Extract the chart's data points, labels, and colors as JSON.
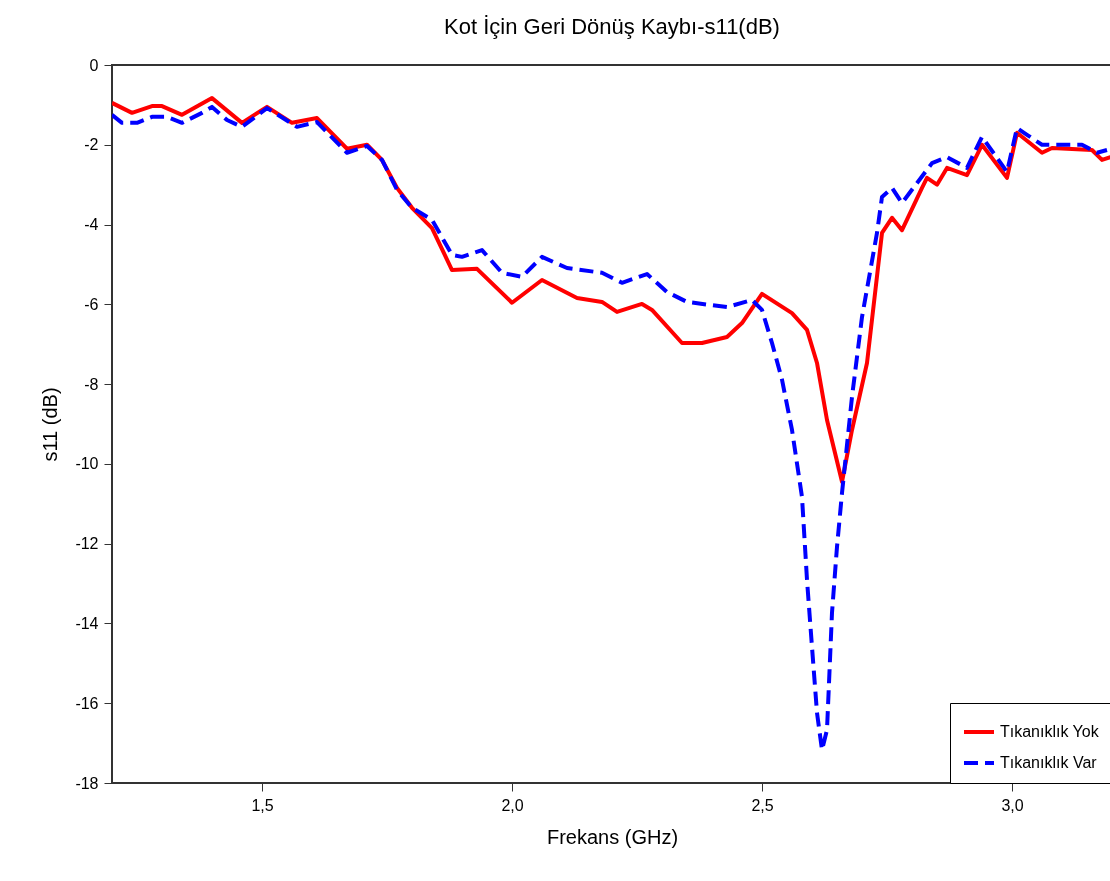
{
  "chart_data": {
    "type": "line",
    "title": "Kot İçin Geri Dönüş Kaybı-s11(dB)",
    "xlabel": "Frekans (GHz)",
    "ylabel": "s11 (dB)",
    "xlim": [
      1.2,
      3.2
    ],
    "xticks": [
      {
        "value": 1.5,
        "label": "1,5"
      },
      {
        "value": 2.0,
        "label": "2,0"
      },
      {
        "value": 2.5,
        "label": "2,5"
      },
      {
        "value": 3.0,
        "label": "3,0"
      }
    ],
    "ylim": [
      -18,
      0
    ],
    "yticks": [
      -18,
      -16,
      -14,
      -12,
      -10,
      -8,
      -6,
      -4,
      -2,
      0
    ],
    "legend": "bottom right",
    "grid": false,
    "series": [
      {
        "name": "Tıkanıklık Yok",
        "color": "#ff0000",
        "line_style": "solid",
        "x": [
          1.2,
          1.24,
          1.28,
          1.3,
          1.34,
          1.4,
          1.46,
          1.51,
          1.56,
          1.61,
          1.67,
          1.71,
          1.74,
          1.77,
          1.8,
          1.84,
          1.88,
          1.93,
          2.0,
          2.06,
          2.13,
          2.18,
          2.21,
          2.26,
          2.28,
          2.34,
          2.38,
          2.43,
          2.46,
          2.5,
          2.56,
          2.59,
          2.61,
          2.63,
          2.66,
          2.68,
          2.71,
          2.74,
          2.76,
          2.78,
          2.82,
          2.83,
          2.85,
          2.87,
          2.91,
          2.94,
          2.99,
          3.01,
          3.06,
          3.08,
          3.16,
          3.18,
          3.2
        ],
        "values": [
          -0.95,
          -1.2,
          -1.03,
          -1.03,
          -1.25,
          -0.83,
          -1.45,
          -1.05,
          -1.45,
          -1.33,
          -2.1,
          -2.0,
          -2.38,
          -3.08,
          -3.58,
          -4.09,
          -5.14,
          -5.11,
          -5.96,
          -5.39,
          -5.84,
          -5.94,
          -6.19,
          -5.99,
          -6.14,
          -6.97,
          -6.97,
          -6.82,
          -6.47,
          -5.74,
          -6.22,
          -6.64,
          -7.47,
          -8.9,
          -10.45,
          -9.15,
          -7.47,
          -4.21,
          -3.83,
          -4.14,
          -3.08,
          -2.83,
          -3.0,
          -2.58,
          -2.76,
          -2.0,
          -2.83,
          -1.7,
          -2.2,
          -2.08,
          -2.13,
          -2.38,
          -2.3
        ]
      },
      {
        "name": "Tıkanıklık Var",
        "color": "#0000ff",
        "line_style": "dashed",
        "x": [
          1.2,
          1.22,
          1.25,
          1.28,
          1.31,
          1.34,
          1.38,
          1.4,
          1.43,
          1.46,
          1.51,
          1.57,
          1.61,
          1.67,
          1.71,
          1.74,
          1.77,
          1.8,
          1.84,
          1.88,
          1.9,
          1.94,
          1.98,
          2.02,
          2.06,
          2.11,
          2.18,
          2.22,
          2.27,
          2.31,
          2.35,
          2.43,
          2.48,
          2.5,
          2.52,
          2.54,
          2.56,
          2.58,
          2.59,
          2.6,
          2.61,
          2.62,
          2.63,
          2.64,
          2.65,
          2.66,
          2.68,
          2.7,
          2.73,
          2.74,
          2.76,
          2.78,
          2.84,
          2.87,
          2.91,
          2.94,
          2.99,
          3.01,
          3.03,
          3.06,
          3.1,
          3.14,
          3.17,
          3.19
        ],
        "values": [
          -1.25,
          -1.45,
          -1.45,
          -1.3,
          -1.3,
          -1.45,
          -1.2,
          -1.05,
          -1.38,
          -1.55,
          -1.08,
          -1.55,
          -1.43,
          -2.2,
          -2.03,
          -2.38,
          -3.13,
          -3.58,
          -3.88,
          -4.76,
          -4.81,
          -4.64,
          -5.21,
          -5.31,
          -4.81,
          -5.09,
          -5.21,
          -5.46,
          -5.24,
          -5.69,
          -5.94,
          -6.07,
          -5.89,
          -6.14,
          -6.97,
          -7.89,
          -9.15,
          -10.83,
          -12.91,
          -14.59,
          -16.24,
          -17.17,
          -16.67,
          -13.73,
          -12.08,
          -10.73,
          -8.32,
          -6.32,
          -4.21,
          -3.31,
          -3.08,
          -3.46,
          -2.46,
          -2.31,
          -2.58,
          -1.8,
          -2.68,
          -1.58,
          -1.75,
          -2.0,
          -2.0,
          -2.0,
          -2.2,
          -2.13
        ]
      }
    ]
  }
}
